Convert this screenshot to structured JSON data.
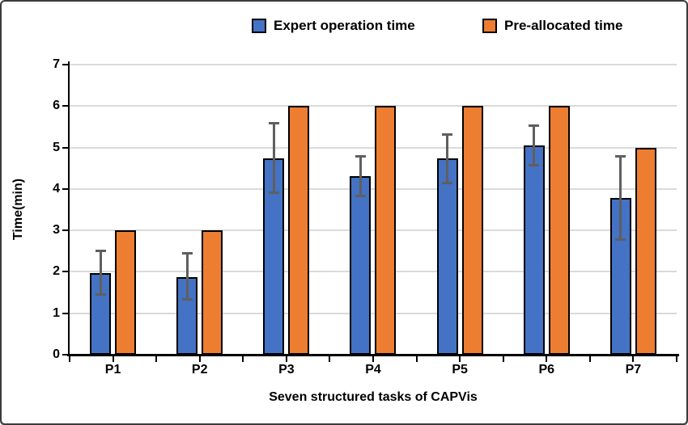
{
  "chart_data": {
    "type": "bar",
    "categories": [
      "P1",
      "P2",
      "P3",
      "P4",
      "P5",
      "P6",
      "P7"
    ],
    "series": [
      {
        "name": "Expert operation time",
        "color": "#4472C4",
        "values": [
          1.97,
          1.88,
          4.74,
          4.3,
          4.74,
          5.05,
          3.78
        ],
        "error_bars": {
          "color": "#5f5f5f",
          "low": [
            1.48,
            1.36,
            3.93,
            3.86,
            4.17,
            4.6,
            2.8
          ],
          "high": [
            2.48,
            2.42,
            5.55,
            4.76,
            5.29,
            5.5,
            4.75
          ]
        }
      },
      {
        "name": "Pre-allocated time",
        "color": "#ED7D31",
        "values": [
          3,
          3,
          6,
          6,
          6,
          6,
          5
        ]
      }
    ],
    "title": "",
    "xlabel": "Seven structured tasks of CAPVis",
    "ylabel": "Time(min)",
    "ylim": [
      0,
      7
    ],
    "yticks": [
      0,
      1,
      2,
      3,
      4,
      5,
      6,
      7
    ],
    "grid": true,
    "legend_position": "top",
    "bar_outline_color": "#000000",
    "gridline_color": "#dadada",
    "axis_color": "#000000"
  }
}
